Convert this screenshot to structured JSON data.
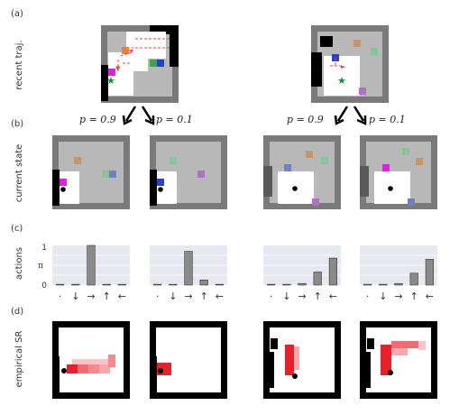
{
  "panels": {
    "a": "(a)",
    "b": "(b)",
    "c": "(c)",
    "d": "(d)"
  },
  "row_labels": {
    "a": "recent traj.",
    "b": "current state",
    "c": "actions",
    "d": "empirical SR"
  },
  "probabilities": {
    "left_high": "p = 0.9",
    "left_low": "p = 0.1",
    "right_high": "p = 0.9",
    "right_low": "p = 0.1"
  },
  "chart_data": [
    {
      "type": "bar",
      "categories": [
        "·",
        "↓",
        "→",
        "↑",
        "←"
      ],
      "values": [
        0.02,
        0.02,
        1.0,
        0.02,
        0.02
      ],
      "ylabel": "π",
      "ylim": [
        0,
        1
      ],
      "yticks": [
        "1",
        "0"
      ]
    },
    {
      "type": "bar",
      "categories": [
        "·",
        "↓",
        "→",
        "↑",
        "←"
      ],
      "values": [
        0.02,
        0.02,
        0.85,
        0.13,
        0.02
      ],
      "ylabel": "",
      "ylim": [
        0,
        1
      ]
    },
    {
      "type": "bar",
      "categories": [
        "·",
        "↓",
        "→",
        "↑",
        "←"
      ],
      "values": [
        0.02,
        0.02,
        0.04,
        0.33,
        0.68
      ],
      "ylabel": "",
      "ylim": [
        0,
        1
      ]
    },
    {
      "type": "bar",
      "categories": [
        "·",
        "↓",
        "→",
        "↑",
        "←"
      ],
      "values": [
        0.02,
        0.02,
        0.04,
        0.3,
        0.65
      ],
      "ylabel": "",
      "ylim": [
        0,
        1
      ]
    }
  ],
  "colors": {
    "wall": "#7a7a7a",
    "floor": "#b8b8b8",
    "visited": "#ffffff",
    "bar": "#8a8a8a",
    "chart_bg": "#e8e8f0",
    "sr": "#e8202a",
    "arrow": "#e8404a"
  }
}
